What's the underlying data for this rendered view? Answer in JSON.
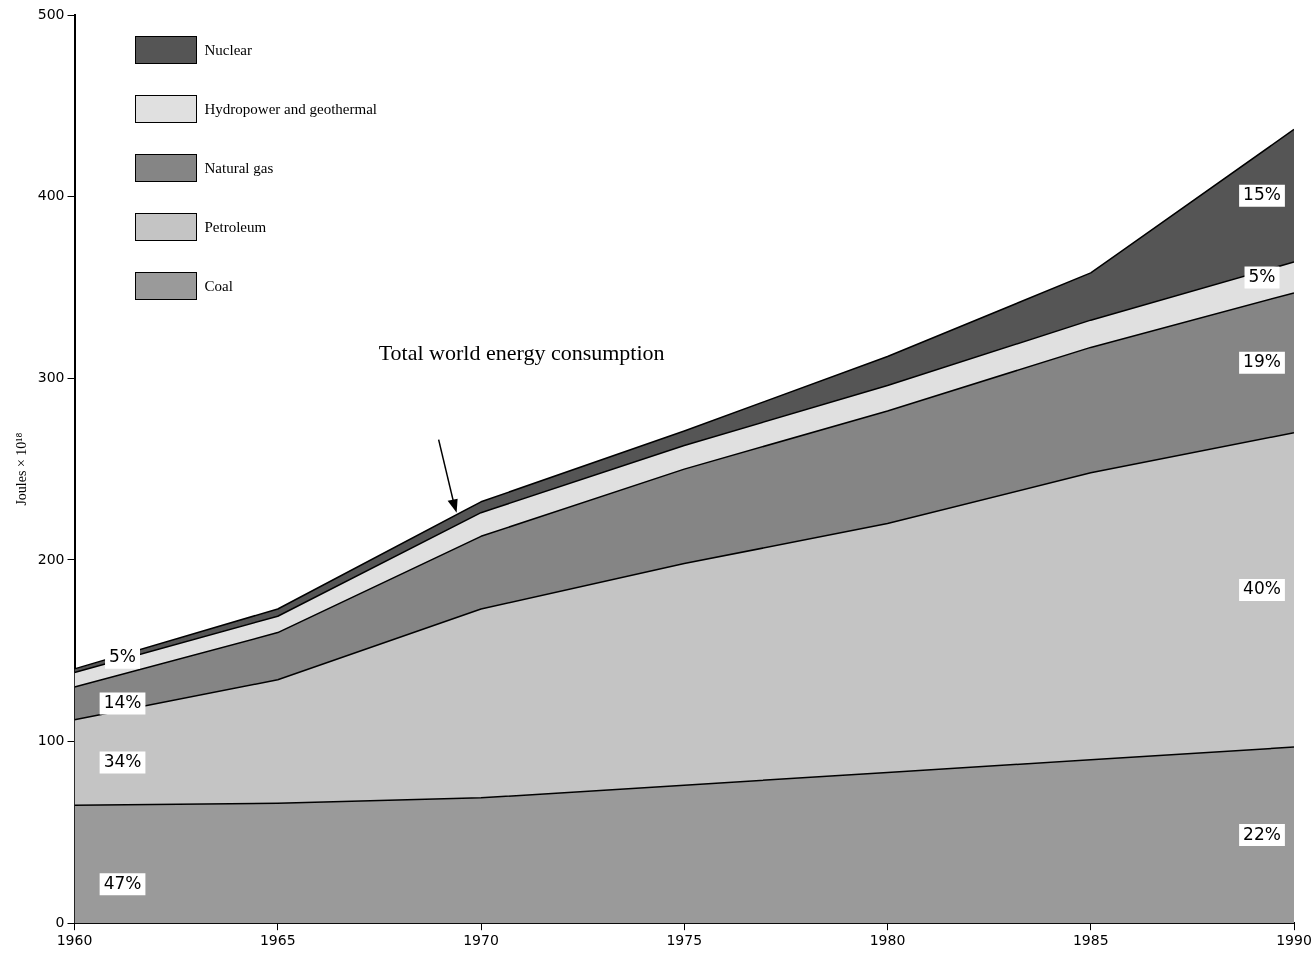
{
  "chart_data": {
    "type": "area",
    "stacked": true,
    "ylabel": "Joules × 10¹⁸",
    "x": [
      1960,
      1965,
      1970,
      1975,
      1980,
      1985,
      1990
    ],
    "xlim": [
      1960,
      1990
    ],
    "xticks": [
      1960,
      1965,
      1970,
      1975,
      1980,
      1985,
      1990
    ],
    "ylim": [
      0,
      500
    ],
    "yticks": [
      0,
      100,
      200,
      300,
      400,
      500
    ],
    "grid": false,
    "legend": "top left",
    "marker": "none",
    "series": [
      {
        "name": "Coal",
        "color": "#9a9a9a",
        "values": [
          65,
          66,
          69,
          76,
          83,
          90,
          97
        ]
      },
      {
        "name": "Petroleum",
        "color": "#c4c4c4",
        "values": [
          47,
          68,
          104,
          122,
          137,
          158,
          173
        ]
      },
      {
        "name": "Natural gas",
        "color": "#858585",
        "values": [
          18,
          26,
          40,
          52,
          62,
          69,
          77
        ]
      },
      {
        "name": "Hydropower and geothermal",
        "color": "#e0e0e0",
        "values": [
          8,
          9,
          13,
          13,
          14,
          15,
          17
        ]
      },
      {
        "name": "Nuclear",
        "color": "#555555",
        "values": [
          2,
          4,
          6,
          8,
          16,
          26,
          73
        ]
      }
    ],
    "annotations": [
      "Total world energy consumption",
      "47%",
      "34%",
      "14%",
      "5%",
      "22%",
      "40%",
      "19%",
      "5%",
      "15%"
    ]
  }
}
